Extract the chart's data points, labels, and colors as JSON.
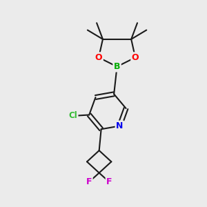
{
  "background_color": "#ebebeb",
  "bond_color": "#1a1a1a",
  "atom_colors": {
    "O": "#ff0000",
    "B": "#00aa00",
    "N": "#0000ee",
    "Cl": "#33bb33",
    "F": "#cc00cc",
    "C": "#1a1a1a"
  },
  "font_size": 9,
  "fig_size": [
    3.0,
    3.0
  ],
  "dpi": 100
}
